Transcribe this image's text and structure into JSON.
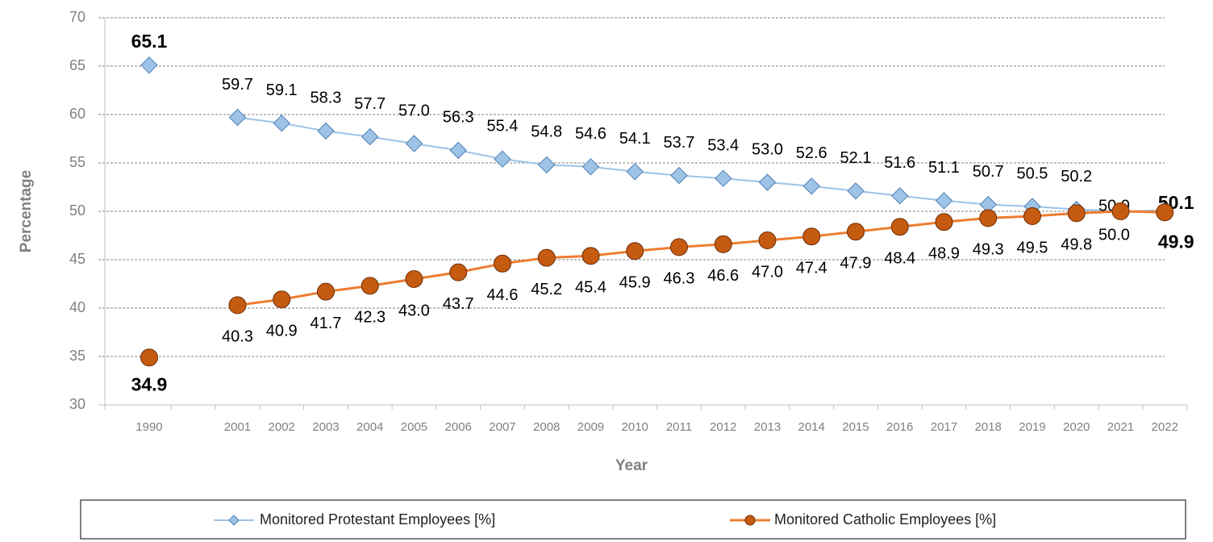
{
  "chart_data": {
    "type": "line",
    "x_label": "Year",
    "y_label": "Percentage",
    "categories": [
      "1990",
      null,
      "2001",
      "2002",
      "2003",
      "2004",
      "2005",
      "2006",
      "2007",
      "2008",
      "2009",
      "2010",
      "2011",
      "2012",
      "2013",
      "2014",
      "2015",
      "2016",
      "2017",
      "2018",
      "2019",
      "2020",
      "2021",
      "2022"
    ],
    "series": [
      {
        "name": "Monitored Protestant Employees [%]",
        "color": "#9dc3e6",
        "marker": "diamond",
        "marker_stroke": "#4f7fb5",
        "values": [
          65.1,
          null,
          59.7,
          59.1,
          58.3,
          57.7,
          57.0,
          56.3,
          55.4,
          54.8,
          54.6,
          54.1,
          53.7,
          53.4,
          53.0,
          52.6,
          52.1,
          51.6,
          51.1,
          50.7,
          50.5,
          50.2,
          50.0,
          50.1
        ],
        "value_labels": [
          "65.1",
          null,
          "59.7",
          "59.1",
          "58.3",
          "57.7",
          "57.0",
          "56.3",
          "55.4",
          "54.8",
          "54.6",
          "54.1",
          "53.7",
          "53.4",
          "53.0",
          "52.6",
          "52.1",
          "51.6",
          "51.1",
          "50.7",
          "50.5",
          "50.2",
          "50.0",
          "50.1"
        ]
      },
      {
        "name": "Monitored Catholic Employees [%]",
        "color": "#ed7d31",
        "marker": "circle",
        "marker_fill": "#c55a11",
        "marker_stroke": "#6b2e05",
        "values": [
          34.9,
          null,
          40.3,
          40.9,
          41.7,
          42.3,
          43.0,
          43.7,
          44.6,
          45.2,
          45.4,
          45.9,
          46.3,
          46.6,
          47.0,
          47.4,
          47.9,
          48.4,
          48.9,
          49.3,
          49.5,
          49.8,
          50.0,
          49.9
        ],
        "value_labels": [
          "34.9",
          null,
          "40.3",
          "40.9",
          "41.7",
          "42.3",
          "43.0",
          "43.7",
          "44.6",
          "45.2",
          "45.4",
          "45.9",
          "46.3",
          "46.6",
          "47.0",
          "47.4",
          "47.9",
          "48.4",
          "48.9",
          "49.3",
          "49.5",
          "49.8",
          "50.0",
          "49.9"
        ]
      }
    ],
    "ylim": [
      30,
      70
    ],
    "yticks": [
      30,
      35,
      40,
      45,
      50,
      55,
      60,
      65,
      70
    ],
    "grid": true,
    "legend": "bottom"
  }
}
